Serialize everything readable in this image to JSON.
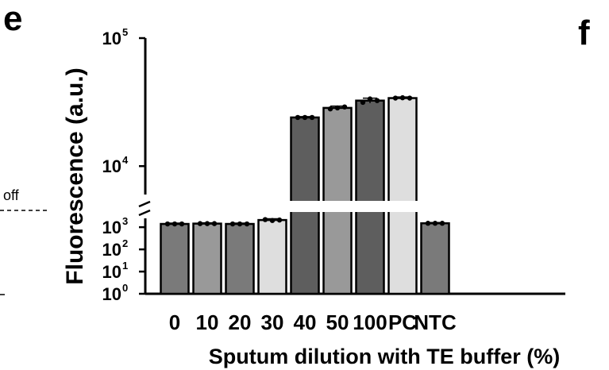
{
  "panel_left": "e",
  "panel_right": "f",
  "side_text": "off",
  "colors": {
    "dark": "#5e5e5e",
    "mid": "#999999",
    "medium_dark": "#7a7a7a",
    "light": "#dedede",
    "outline": "#000000"
  },
  "chart_data": {
    "type": "bar",
    "title": "",
    "xlabel": "Sputum dilution with TE buffer (%)",
    "ylabel": "Fluorescence (a.u.)",
    "y_scale": "log (broken axis)",
    "categories": [
      "0",
      "10",
      "20",
      "30",
      "40",
      "50",
      "100",
      "PC",
      "NTC"
    ],
    "values": [
      1400,
      1450,
      1400,
      2100,
      24000,
      28500,
      32500,
      34000,
      1500
    ],
    "replicates": [
      [
        1400,
        1400,
        1400
      ],
      [
        1450,
        1450,
        1450
      ],
      [
        1400,
        1400,
        1400
      ],
      [
        2200,
        2000,
        2100
      ],
      [
        24000,
        24000,
        24000
      ],
      [
        28000,
        28500,
        29000
      ],
      [
        31500,
        33500,
        32500
      ],
      [
        34000,
        34200,
        34000
      ],
      [
        1500,
        1500,
        1500
      ]
    ],
    "bar_colors": [
      "#7a7a7a",
      "#999999",
      "#7a7a7a",
      "#dedede",
      "#5e5e5e",
      "#999999",
      "#5e5e5e",
      "#dedede",
      "#7a7a7a"
    ],
    "y_ticks": [
      {
        "base": "10",
        "exp": "0",
        "value": 1
      },
      {
        "base": "10",
        "exp": "1",
        "value": 10
      },
      {
        "base": "10",
        "exp": "2",
        "value": 100
      },
      {
        "base": "10",
        "exp": "3",
        "value": 1000
      },
      {
        "base": "10",
        "exp": "4",
        "value": 10000
      },
      {
        "base": "10",
        "exp": "5",
        "value": 100000
      }
    ],
    "lower_segment": [
      1,
      2500
    ],
    "upper_segment": [
      6000,
      100000
    ],
    "grid": false,
    "legend": "none"
  }
}
